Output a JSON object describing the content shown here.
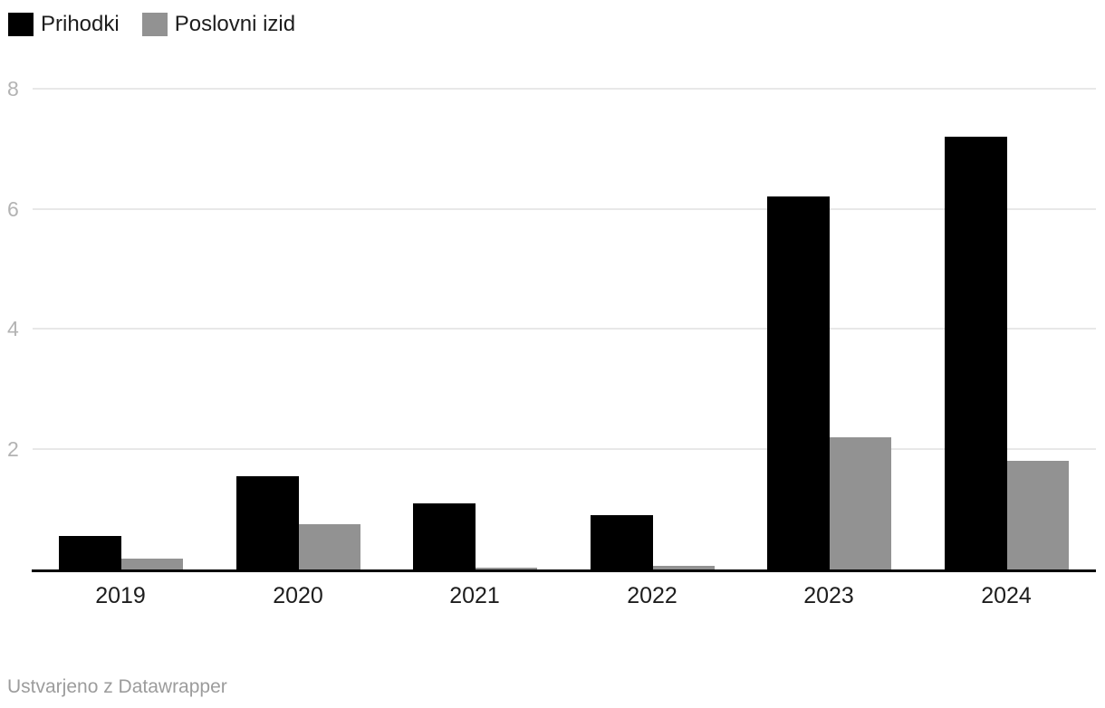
{
  "legend": {
    "items": [
      {
        "label": "Prihodki",
        "color": "#000000"
      },
      {
        "label": "Poslovni izid",
        "color": "#929292"
      }
    ]
  },
  "chart_data": {
    "type": "bar",
    "title": "",
    "xlabel": "",
    "ylabel": "",
    "categories": [
      "2019",
      "2020",
      "2021",
      "2022",
      "2023",
      "2024"
    ],
    "series": [
      {
        "name": "Prihodki",
        "color": "#000000",
        "values": [
          0.55,
          1.55,
          1.1,
          0.9,
          6.2,
          7.2
        ]
      },
      {
        "name": "Poslovni izid",
        "color": "#929292",
        "values": [
          0.18,
          0.75,
          0.03,
          0.06,
          2.2,
          1.8
        ]
      }
    ],
    "ylim": [
      0,
      8
    ],
    "yticks": [
      2,
      4,
      6,
      8
    ],
    "grid": true,
    "legend_position": "top-left"
  },
  "footer": {
    "credit": "Ustvarjeno z Datawrapper"
  },
  "colors": {
    "background": "#ffffff",
    "grid": "#e8e8e8",
    "axis": "#000000",
    "y_tick_label": "#b3b3b3",
    "x_label": "#1d1d1d",
    "footer_text": "#9c9c9c"
  }
}
